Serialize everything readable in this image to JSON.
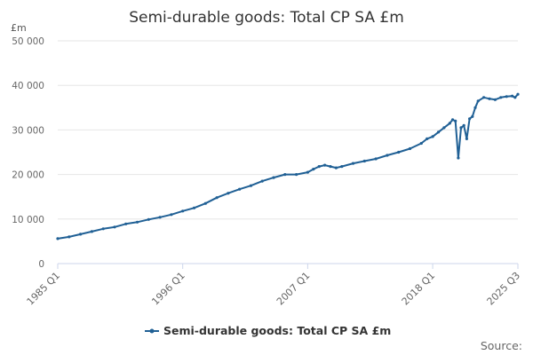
{
  "chart_data": {
    "type": "line",
    "title": "Semi-durable goods: Total CP SA £m",
    "y_unit_label": "£m",
    "ylim": [
      0,
      50000
    ],
    "yticks": [
      {
        "value": 0,
        "label": "0"
      },
      {
        "value": 10000,
        "label": "10 000"
      },
      {
        "value": 20000,
        "label": "20 000"
      },
      {
        "value": 30000,
        "label": "30 000"
      },
      {
        "value": 40000,
        "label": "40 000"
      },
      {
        "value": 50000,
        "label": "50 000"
      }
    ],
    "xlim": [
      1985.0,
      2025.5
    ],
    "xticks": [
      {
        "value": 1985.0,
        "label": "1985 Q1"
      },
      {
        "value": 1996.0,
        "label": "1996 Q1"
      },
      {
        "value": 2007.0,
        "label": "2007 Q1"
      },
      {
        "value": 2018.0,
        "label": "2018 Q1"
      },
      {
        "value": 2025.5,
        "label": "2025 Q3"
      }
    ],
    "grid": true,
    "legend_position": "bottom-center",
    "series": [
      {
        "name": "Semi-durable goods: Total CP SA £m",
        "color": "#206095",
        "points": [
          [
            1985.0,
            5600
          ],
          [
            1986.0,
            6000
          ],
          [
            1987.0,
            6600
          ],
          [
            1988.0,
            7200
          ],
          [
            1989.0,
            7800
          ],
          [
            1990.0,
            8200
          ],
          [
            1991.0,
            8900
          ],
          [
            1992.0,
            9300
          ],
          [
            1993.0,
            9900
          ],
          [
            1994.0,
            10400
          ],
          [
            1995.0,
            11000
          ],
          [
            1996.0,
            11800
          ],
          [
            1997.0,
            12500
          ],
          [
            1998.0,
            13500
          ],
          [
            1999.0,
            14800
          ],
          [
            2000.0,
            15800
          ],
          [
            2001.0,
            16700
          ],
          [
            2002.0,
            17500
          ],
          [
            2003.0,
            18500
          ],
          [
            2004.0,
            19300
          ],
          [
            2005.0,
            20000
          ],
          [
            2006.0,
            20000
          ],
          [
            2007.0,
            20500
          ],
          [
            2007.5,
            21200
          ],
          [
            2008.0,
            21800
          ],
          [
            2008.5,
            22100
          ],
          [
            2009.0,
            21800
          ],
          [
            2009.5,
            21500
          ],
          [
            2010.0,
            21800
          ],
          [
            2011.0,
            22500
          ],
          [
            2012.0,
            23000
          ],
          [
            2013.0,
            23500
          ],
          [
            2014.0,
            24300
          ],
          [
            2015.0,
            25000
          ],
          [
            2016.0,
            25800
          ],
          [
            2017.0,
            27000
          ],
          [
            2017.5,
            28000
          ],
          [
            2018.0,
            28500
          ],
          [
            2018.5,
            29500
          ],
          [
            2019.0,
            30500
          ],
          [
            2019.5,
            31500
          ],
          [
            2019.75,
            32300
          ],
          [
            2020.0,
            32000
          ],
          [
            2020.25,
            23700
          ],
          [
            2020.5,
            30500
          ],
          [
            2020.75,
            31000
          ],
          [
            2021.0,
            28000
          ],
          [
            2021.25,
            32500
          ],
          [
            2021.5,
            33000
          ],
          [
            2021.75,
            35000
          ],
          [
            2022.0,
            36500
          ],
          [
            2022.5,
            37300
          ],
          [
            2023.0,
            37000
          ],
          [
            2023.5,
            36800
          ],
          [
            2024.0,
            37300
          ],
          [
            2024.5,
            37500
          ],
          [
            2025.0,
            37600
          ],
          [
            2025.25,
            37300
          ],
          [
            2025.5,
            38000
          ]
        ]
      }
    ]
  },
  "footer": {
    "source_label": "Source:"
  }
}
